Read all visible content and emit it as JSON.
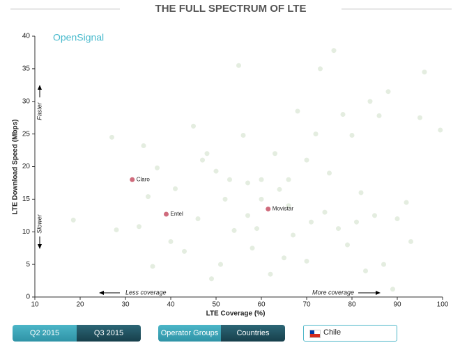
{
  "brand": "OpenSignal",
  "controls": {
    "periods": [
      "Q2 2015",
      "Q3 2015"
    ],
    "groupings": [
      "Operator Groups",
      "Countries"
    ],
    "country": "Chile"
  },
  "chart_data": {
    "type": "scatter",
    "title": "THE FULL SPECTRUM OF LTE",
    "xlabel": "LTE Coverage (%)",
    "ylabel": "LTE Download Speed (Mbps)",
    "annotations": {
      "faster": "Faster",
      "slower": "Slower",
      "less": "Less coverage",
      "more": "More coverage"
    },
    "xlim": [
      10,
      100
    ],
    "ylim": [
      0,
      40
    ],
    "xticks": [
      10,
      20,
      30,
      40,
      50,
      60,
      70,
      80,
      90,
      100
    ],
    "yticks": [
      0,
      5,
      10,
      15,
      20,
      25,
      30,
      35,
      40
    ],
    "series": [
      {
        "color": "#d9e6d3",
        "x": [
          27,
          34,
          35,
          37,
          41,
          45,
          48,
          50,
          52,
          53,
          55,
          56,
          57,
          59,
          60,
          63,
          64,
          66,
          68,
          70,
          72,
          73,
          75,
          76,
          78,
          80,
          82,
          84,
          86,
          88,
          92,
          95,
          96,
          99.5,
          18.5,
          28,
          33,
          36,
          40,
          43,
          46,
          49,
          51,
          54,
          58,
          62,
          65,
          67,
          70,
          74,
          77,
          79,
          81,
          83,
          85,
          87,
          89,
          90,
          93,
          47,
          57,
          66,
          71,
          60
        ],
        "y": [
          24.5,
          23.2,
          15.4,
          19.8,
          16.6,
          26.2,
          22,
          19.3,
          15,
          18,
          35.5,
          24.8,
          17.5,
          10.5,
          18,
          22,
          16.5,
          18,
          28.5,
          21,
          25,
          35,
          19,
          37.8,
          28,
          24.8,
          16,
          30,
          27.8,
          31.5,
          14.5,
          27.5,
          34.5,
          25.6,
          11.8,
          10.3,
          10.8,
          4.7,
          8.5,
          7,
          12,
          2.8,
          5,
          10.2,
          7.5,
          3.5,
          6,
          9.5,
          5.5,
          13,
          10.5,
          8,
          11.5,
          4,
          12.5,
          5,
          1.2,
          12,
          8.5,
          21,
          12.5,
          14,
          11.5,
          15
        ]
      },
      {
        "color": "#cf6b7c",
        "labels": [
          "Claro",
          "Entel",
          "Movistar"
        ],
        "x": [
          31.5,
          39,
          61.5
        ],
        "y": [
          18,
          12.7,
          13.5
        ]
      }
    ]
  }
}
